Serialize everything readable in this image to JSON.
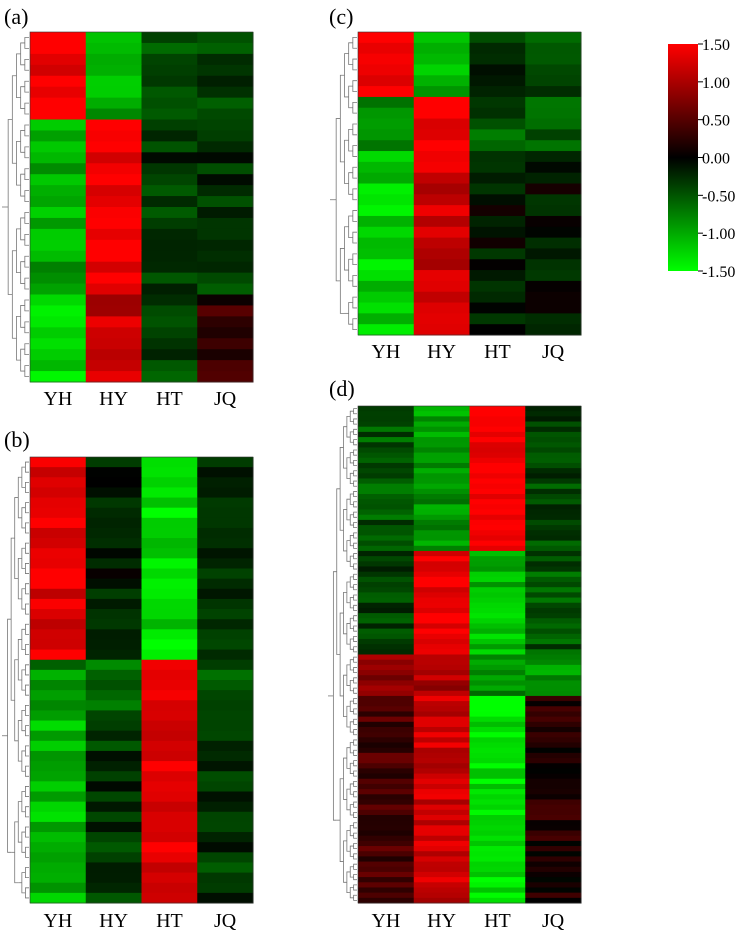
{
  "chart_data": [
    {
      "type": "heatmap",
      "panel_label": "(a)",
      "columns": [
        "YH",
        "HY",
        "HT",
        "JQ"
      ],
      "rows": 32,
      "value_range": [
        -1.5,
        1.5
      ],
      "blocks": [
        {
          "rows": 8,
          "values": [
            1.45,
            -1.0,
            -0.5,
            -0.4
          ]
        },
        {
          "rows": 16,
          "values": [
            -1.0,
            1.45,
            -0.3,
            -0.3
          ]
        },
        {
          "rows": 8,
          "values": [
            -1.3,
            1.15,
            -0.4,
            0.3
          ]
        }
      ]
    },
    {
      "type": "heatmap",
      "panel_label": "(b)",
      "columns": [
        "YH",
        "HY",
        "HT",
        "JQ"
      ],
      "rows": 44,
      "value_range": [
        -1.5,
        1.5
      ],
      "blocks": [
        {
          "rows": 20,
          "values": [
            1.35,
            -0.2,
            -1.3,
            -0.2
          ]
        },
        {
          "rows": 6,
          "values": [
            -0.8,
            -0.6,
            1.5,
            -0.6
          ]
        },
        {
          "rows": 18,
          "values": [
            -1.1,
            -0.3,
            1.35,
            -0.3
          ]
        }
      ]
    },
    {
      "type": "heatmap",
      "panel_label": "(c)",
      "columns": [
        "YH",
        "HY",
        "HT",
        "JQ"
      ],
      "rows": 28,
      "value_range": [
        -1.5,
        1.5
      ],
      "blocks": [
        {
          "rows": 6,
          "values": [
            1.4,
            -1.0,
            -0.3,
            -0.4
          ]
        },
        {
          "rows": 5,
          "values": [
            -0.9,
            1.5,
            -0.5,
            -0.6
          ]
        },
        {
          "rows": 17,
          "values": [
            -1.2,
            1.2,
            -0.1,
            -0.1
          ]
        }
      ]
    },
    {
      "type": "heatmap",
      "panel_label": "(d)",
      "columns": [
        "YH",
        "HY",
        "HT",
        "JQ"
      ],
      "rows": 96,
      "value_range": [
        -1.5,
        1.5
      ],
      "blocks": [
        {
          "rows": 28,
          "values": [
            -0.5,
            -0.9,
            1.45,
            -0.4
          ]
        },
        {
          "rows": 20,
          "values": [
            -0.4,
            1.45,
            -1.1,
            -0.5
          ]
        },
        {
          "rows": 8,
          "values": [
            0.8,
            1.0,
            -0.8,
            -0.9
          ]
        },
        {
          "rows": 40,
          "values": [
            0.4,
            1.2,
            -1.35,
            0.2
          ]
        }
      ]
    }
  ],
  "colorbar": {
    "ticks": [
      "1.50",
      "1.00",
      "0.50",
      "0.00",
      "-0.50",
      "-1.00",
      "-1.50"
    ],
    "low_color": "#00ff00",
    "mid_color": "#000000",
    "high_color": "#ff0000"
  }
}
